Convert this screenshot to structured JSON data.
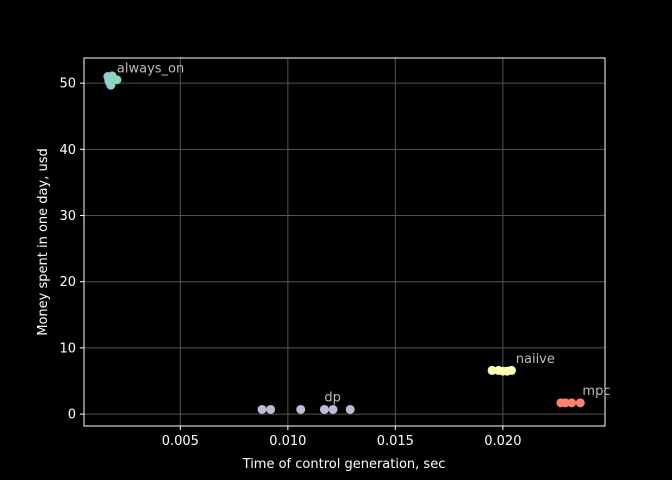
{
  "chart_data": {
    "type": "scatter",
    "title": "",
    "xlabel": "Time of control generation, sec",
    "ylabel": "Money spent in one day, usd",
    "xlim": [
      0.00052,
      0.02475
    ],
    "ylim": [
      -1.8,
      53.8
    ],
    "xticks": [
      0.005,
      0.01,
      0.015,
      0.02
    ],
    "xtick_labels": [
      "0.005",
      "0.010",
      "0.015",
      "0.020"
    ],
    "yticks": [
      0,
      10,
      20,
      30,
      40,
      50
    ],
    "ytick_labels": [
      "0",
      "10",
      "20",
      "30",
      "40",
      "50"
    ],
    "grid": true,
    "background": "#000000",
    "series": [
      {
        "annotation": "always_on",
        "color": "#8dd3c7",
        "x": [
          0.00163,
          0.00167,
          0.00173,
          0.00177,
          0.00183,
          0.00168,
          0.00205
        ],
        "y": [
          51.0,
          50.6,
          50.0,
          49.7,
          51.1,
          50.3,
          50.5
        ]
      },
      {
        "annotation": "dp",
        "color": "#bebada",
        "x": [
          0.0088,
          0.0092,
          0.0106,
          0.0117,
          0.0121,
          0.0129
        ],
        "y": [
          0.7,
          0.7,
          0.7,
          0.7,
          0.7,
          0.7
        ]
      },
      {
        "annotation": "naiive",
        "color": "#ffffb3",
        "x": [
          0.0195,
          0.0198,
          0.02,
          0.0202,
          0.0204
        ],
        "y": [
          6.6,
          6.6,
          6.5,
          6.5,
          6.6
        ]
      },
      {
        "annotation": "mpc",
        "color": "#fb8072",
        "x": [
          0.0227,
          0.0229,
          0.0232,
          0.0236
        ],
        "y": [
          1.7,
          1.7,
          1.7,
          1.7
        ]
      }
    ],
    "annotations": [
      {
        "text": "always_on",
        "x": 0.00205,
        "y": 51.6
      },
      {
        "text": "dp",
        "x": 0.0117,
        "y": 1.9
      },
      {
        "text": "naiive",
        "x": 0.0206,
        "y": 7.7
      },
      {
        "text": "mpc",
        "x": 0.0237,
        "y": 2.9
      }
    ]
  }
}
